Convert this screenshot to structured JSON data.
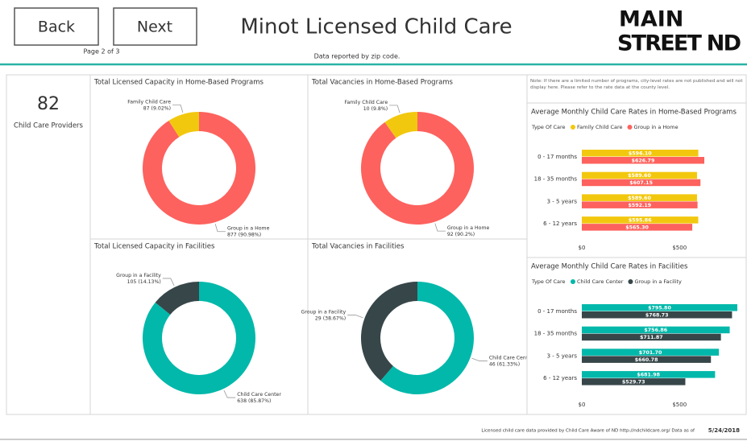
{
  "header": {
    "back_button": "Back",
    "next_button": "Next",
    "page_indicator": "Page 2 of 3",
    "title": "Minot Licensed Child Care",
    "subtitle": "Data reported by zip code.",
    "logo": [
      "MAIN",
      "STREET ND"
    ]
  },
  "kpi": {
    "value": "82",
    "label": "Child Care Providers"
  },
  "note": "Note: If there are a limited number of programs, city-level rates are not published and will not display here. Please refer to the rate data at the county level.",
  "footer": {
    "source": "Licensed child care data provided by Child Care Aware of ND http://ndchildcare.org/   Data as of",
    "date": "5/24/2018"
  },
  "chart_data": [
    {
      "type": "pie",
      "donut": true,
      "title": "Total Licensed Capacity in Home-Based Programs",
      "categories": [
        "Group in a Home",
        "Family Child Care"
      ],
      "values": [
        877,
        87
      ],
      "value_labels": [
        "877 (90.98%)",
        "87 (9.02%)"
      ],
      "colors": [
        "#fd625e",
        "#f2c80f"
      ]
    },
    {
      "type": "pie",
      "donut": true,
      "title": "Total Vacancies in Home-Based Programs",
      "categories": [
        "Group in a Home",
        "Family Child Care"
      ],
      "values": [
        92,
        10
      ],
      "value_labels": [
        "92 (90.2%)",
        "10 (9.8%)"
      ],
      "colors": [
        "#fd625e",
        "#f2c80f"
      ]
    },
    {
      "type": "pie",
      "donut": true,
      "title": "Total Licensed Capacity in Facilities",
      "categories": [
        "Child Care Center",
        "Group in a Facility"
      ],
      "values": [
        638,
        105
      ],
      "value_labels": [
        "638 (85.87%)",
        "105 (14.13%)"
      ],
      "colors": [
        "#01b8aa",
        "#374649"
      ]
    },
    {
      "type": "pie",
      "donut": true,
      "title": "Total Vacancies in Facilities",
      "categories": [
        "Child Care Center",
        "Group in a Facility"
      ],
      "values": [
        46,
        29
      ],
      "value_labels": [
        "46 (61.33%)",
        "29 (38.67%)"
      ],
      "colors": [
        "#01b8aa",
        "#374649"
      ]
    },
    {
      "type": "bar",
      "orientation": "horizontal",
      "title": "Average Monthly Child Care Rates in Home-Based Programs",
      "legend_title": "Type Of Care",
      "categories": [
        "0 - 17 months",
        "18 - 35 months",
        "3 - 5 years",
        "6 - 12 years"
      ],
      "series": [
        {
          "name": "Family Child Care",
          "color": "#f2c80f",
          "values": [
            596.1,
            589.6,
            589.6,
            595.86
          ],
          "value_labels": [
            "$596.10",
            "$589.60",
            "$589.60",
            "$595.86"
          ]
        },
        {
          "name": "Group in a Home",
          "color": "#fd625e",
          "values": [
            626.79,
            607.15,
            592.19,
            565.3
          ],
          "value_labels": [
            "$626.79",
            "$607.15",
            "$592.19",
            "$565.30"
          ]
        }
      ],
      "xlim": [
        0,
        800
      ],
      "xticks": [
        {
          "value": 0,
          "label": "$0"
        },
        {
          "value": 500,
          "label": "$500"
        }
      ]
    },
    {
      "type": "bar",
      "orientation": "horizontal",
      "title": "Average Monthly Child Care Rates in Facilities",
      "legend_title": "Type Of Care",
      "categories": [
        "0 - 17 months",
        "18 - 35 months",
        "3 - 5 years",
        "6 - 12 years"
      ],
      "series": [
        {
          "name": "Child Care Center",
          "color": "#01b8aa",
          "values": [
            795.8,
            756.86,
            701.7,
            681.98
          ],
          "value_labels": [
            "$795.80",
            "$756.86",
            "$701.70",
            "$681.98"
          ]
        },
        {
          "name": "Group in a Facility",
          "color": "#374649",
          "values": [
            768.73,
            711.87,
            660.78,
            529.73
          ],
          "value_labels": [
            "$768.73",
            "$711.87",
            "$660.78",
            "$529.73"
          ]
        }
      ],
      "xlim": [
        0,
        800
      ],
      "xticks": [
        {
          "value": 0,
          "label": "$0"
        },
        {
          "value": 500,
          "label": "$500"
        }
      ]
    }
  ]
}
